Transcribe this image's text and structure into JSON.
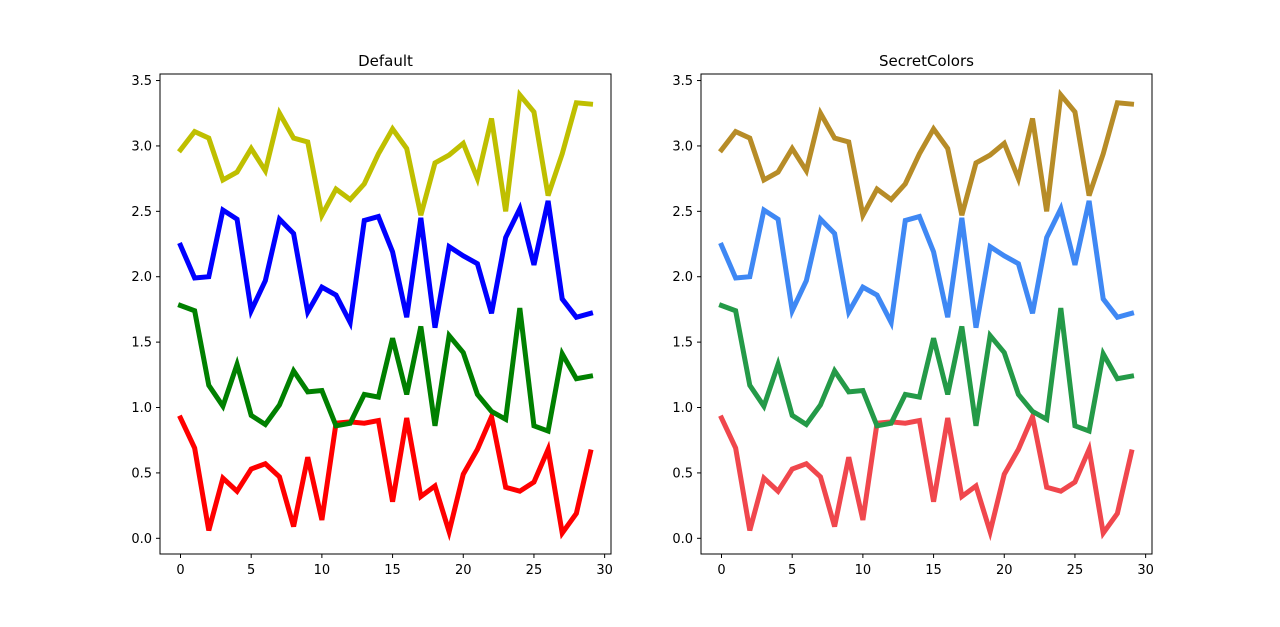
{
  "chart_data": [
    {
      "type": "line",
      "title": "Default",
      "xlabel": "",
      "ylabel": "",
      "xlim": [
        -1.45,
        30.45
      ],
      "ylim": [
        -0.12,
        3.55
      ],
      "xticks": [
        0,
        5,
        10,
        15,
        20,
        25,
        30
      ],
      "yticks": [
        0.0,
        0.5,
        1.0,
        1.5,
        2.0,
        2.5,
        3.0,
        3.5
      ],
      "xtick_labels": [
        "0",
        "5",
        "10",
        "15",
        "20",
        "25",
        "30"
      ],
      "ytick_labels": [
        "0.0",
        "0.5",
        "1.0",
        "1.5",
        "2.0",
        "2.5",
        "3.0",
        "3.5"
      ],
      "grid": false,
      "legend": false,
      "x": [
        0,
        1,
        2,
        3,
        4,
        5,
        6,
        7,
        8,
        9,
        10,
        11,
        12,
        13,
        14,
        15,
        16,
        17,
        18,
        19,
        20,
        21,
        22,
        23,
        24,
        25,
        26,
        27,
        28,
        29
      ],
      "series": [
        {
          "color": "#ff0000",
          "values": [
            0.92,
            0.69,
            0.06,
            0.46,
            0.36,
            0.53,
            0.57,
            0.47,
            0.09,
            0.62,
            0.14,
            0.88,
            0.89,
            0.88,
            0.9,
            0.28,
            0.92,
            0.32,
            0.4,
            0.05,
            0.49,
            0.68,
            0.93,
            0.39,
            0.36,
            0.43,
            0.68,
            0.04,
            0.19,
            0.66
          ]
        },
        {
          "color": "#008000",
          "values": [
            1.78,
            1.74,
            1.17,
            1.01,
            1.33,
            0.94,
            0.87,
            1.02,
            1.28,
            1.12,
            1.13,
            0.86,
            0.88,
            1.1,
            1.08,
            1.53,
            1.1,
            1.62,
            0.86,
            1.55,
            1.42,
            1.1,
            0.97,
            0.91,
            1.76,
            0.86,
            0.82,
            1.41,
            1.22,
            1.24
          ]
        },
        {
          "color": "#0000ff",
          "values": [
            2.24,
            1.99,
            2.0,
            2.51,
            2.44,
            1.74,
            1.97,
            2.44,
            2.33,
            1.73,
            1.92,
            1.86,
            1.65,
            2.43,
            2.46,
            2.19,
            1.69,
            2.45,
            1.61,
            2.23,
            2.16,
            2.1,
            1.72,
            2.3,
            2.52,
            2.09,
            2.58,
            1.83,
            1.69,
            1.72
          ]
        },
        {
          "color": "#bfbf00",
          "values": [
            2.97,
            3.11,
            3.06,
            2.74,
            2.8,
            2.98,
            2.81,
            3.25,
            3.06,
            3.03,
            2.47,
            2.67,
            2.59,
            2.71,
            2.94,
            3.13,
            2.98,
            2.47,
            2.87,
            2.93,
            3.02,
            2.75,
            3.21,
            2.5,
            3.39,
            3.26,
            2.62,
            2.94,
            3.33,
            3.32
          ]
        }
      ]
    },
    {
      "type": "line",
      "title": "SecretColors",
      "xlabel": "",
      "ylabel": "",
      "xlim": [
        -1.45,
        30.45
      ],
      "ylim": [
        -0.12,
        3.55
      ],
      "xticks": [
        0,
        5,
        10,
        15,
        20,
        25,
        30
      ],
      "yticks": [
        0.0,
        0.5,
        1.0,
        1.5,
        2.0,
        2.5,
        3.0,
        3.5
      ],
      "xtick_labels": [
        "0",
        "5",
        "10",
        "15",
        "20",
        "25",
        "30"
      ],
      "ytick_labels": [
        "0.0",
        "0.5",
        "1.0",
        "1.5",
        "2.0",
        "2.5",
        "3.0",
        "3.5"
      ],
      "grid": false,
      "legend": false,
      "x": [
        0,
        1,
        2,
        3,
        4,
        5,
        6,
        7,
        8,
        9,
        10,
        11,
        12,
        13,
        14,
        15,
        16,
        17,
        18,
        19,
        20,
        21,
        22,
        23,
        24,
        25,
        26,
        27,
        28,
        29
      ],
      "series": [
        {
          "color": "#f0474d",
          "values": [
            0.92,
            0.69,
            0.06,
            0.46,
            0.36,
            0.53,
            0.57,
            0.47,
            0.09,
            0.62,
            0.14,
            0.88,
            0.89,
            0.88,
            0.9,
            0.28,
            0.92,
            0.32,
            0.4,
            0.05,
            0.49,
            0.68,
            0.93,
            0.39,
            0.36,
            0.43,
            0.68,
            0.04,
            0.19,
            0.66
          ]
        },
        {
          "color": "#249a48",
          "values": [
            1.78,
            1.74,
            1.17,
            1.01,
            1.33,
            0.94,
            0.87,
            1.02,
            1.28,
            1.12,
            1.13,
            0.86,
            0.88,
            1.1,
            1.08,
            1.53,
            1.1,
            1.62,
            0.86,
            1.55,
            1.42,
            1.1,
            0.97,
            0.91,
            1.76,
            0.86,
            0.82,
            1.41,
            1.22,
            1.24
          ]
        },
        {
          "color": "#3f88f4",
          "values": [
            2.24,
            1.99,
            2.0,
            2.51,
            2.44,
            1.74,
            1.97,
            2.44,
            2.33,
            1.73,
            1.92,
            1.86,
            1.65,
            2.43,
            2.46,
            2.19,
            1.69,
            2.45,
            1.61,
            2.23,
            2.16,
            2.1,
            1.72,
            2.3,
            2.52,
            2.09,
            2.58,
            1.83,
            1.69,
            1.72
          ]
        },
        {
          "color": "#b78c27",
          "values": [
            2.97,
            3.11,
            3.06,
            2.74,
            2.8,
            2.98,
            2.81,
            3.25,
            3.06,
            3.03,
            2.47,
            2.67,
            2.59,
            2.71,
            2.94,
            3.13,
            2.98,
            2.47,
            2.87,
            2.93,
            3.02,
            2.75,
            3.21,
            2.5,
            3.39,
            3.26,
            2.62,
            2.94,
            3.33,
            3.32
          ]
        }
      ]
    }
  ]
}
